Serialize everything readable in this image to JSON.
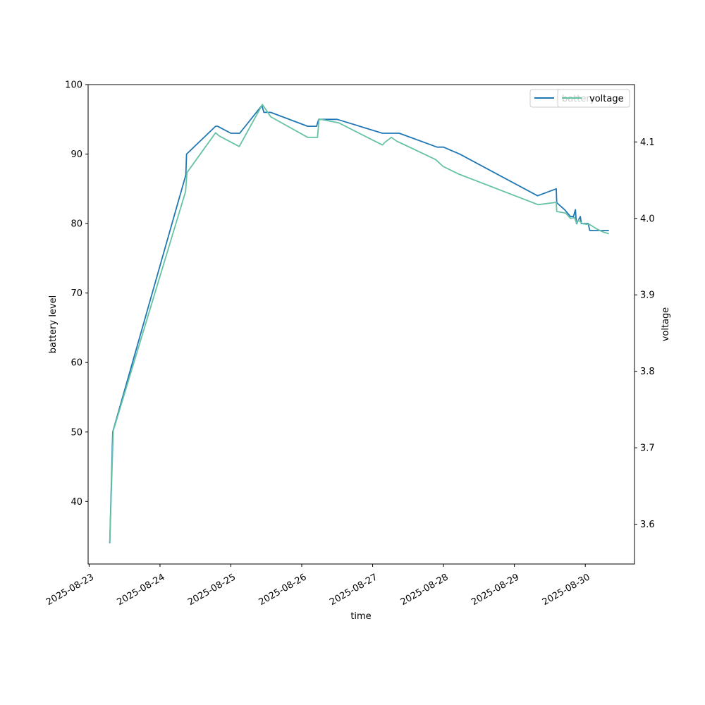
{
  "chart_data": {
    "type": "line",
    "title": "",
    "xlabel": "time",
    "ylabel": "battery level",
    "y2label": "voltage",
    "xlim": [
      "2025-08-22T23:40",
      "2025-08-30T16:40"
    ],
    "ylim": [
      31,
      100
    ],
    "y2lim": [
      3.548,
      4.175
    ],
    "x_ticks": [
      "2025-08-23",
      "2025-08-24",
      "2025-08-25",
      "2025-08-26",
      "2025-08-27",
      "2025-08-28",
      "2025-08-29",
      "2025-08-30"
    ],
    "y_ticks": [
      40,
      50,
      60,
      70,
      80,
      90,
      100
    ],
    "y2_ticks": [
      3.6,
      3.7,
      3.8,
      3.9,
      4.0,
      4.1
    ],
    "legend_left": {
      "placement": "top-right",
      "label": "battery"
    },
    "legend_right": {
      "placement": "top-right",
      "label": "voltage"
    },
    "colors": {
      "battery": "#1f77b4",
      "voltage": "#66c2a5"
    },
    "series": [
      {
        "name": "battery",
        "axis": "left",
        "x": [
          "2025-08-23T07:00",
          "2025-08-23T08:00",
          "2025-08-24T08:45",
          "2025-08-24T09:00",
          "2025-08-24T18:50",
          "2025-08-24T19:30",
          "2025-08-25T00:00",
          "2025-08-25T03:00",
          "2025-08-25T10:30",
          "2025-08-25T11:10",
          "2025-08-25T13:30",
          "2025-08-26T02:00",
          "2025-08-26T05:00",
          "2025-08-26T05:45",
          "2025-08-26T12:00",
          "2025-08-27T03:20",
          "2025-08-27T09:00",
          "2025-08-27T21:50",
          "2025-08-28T00:00",
          "2025-08-28T05:30",
          "2025-08-29T07:50",
          "2025-08-29T14:10",
          "2025-08-29T14:20",
          "2025-08-29T17:00",
          "2025-08-29T19:00",
          "2025-08-29T20:00",
          "2025-08-29T20:40",
          "2025-08-29T21:00",
          "2025-08-29T22:20",
          "2025-08-29T22:40",
          "2025-08-30T01:00",
          "2025-08-30T01:30",
          "2025-08-30T06:00",
          "2025-08-30T08:00"
        ],
        "values": [
          34,
          50,
          87,
          90,
          94,
          94,
          93,
          93,
          97,
          96,
          96,
          94,
          94,
          95,
          95,
          93,
          93,
          91,
          91,
          90,
          84,
          85,
          83,
          82,
          81,
          81,
          82,
          80,
          81,
          80,
          80,
          79,
          79,
          79
        ]
      },
      {
        "name": "voltage",
        "axis": "right",
        "x": [
          "2025-08-23T07:00",
          "2025-08-23T08:10",
          "2025-08-24T08:40",
          "2025-08-24T09:10",
          "2025-08-24T18:50",
          "2025-08-24T20:00",
          "2025-08-25T02:50",
          "2025-08-25T10:40",
          "2025-08-25T13:30",
          "2025-08-26T02:00",
          "2025-08-26T05:20",
          "2025-08-26T05:50",
          "2025-08-26T12:30",
          "2025-08-27T03:20",
          "2025-08-27T04:00",
          "2025-08-27T06:20",
          "2025-08-27T08:10",
          "2025-08-27T09:50",
          "2025-08-27T21:20",
          "2025-08-27T23:50",
          "2025-08-28T05:10",
          "2025-08-29T08:00",
          "2025-08-29T14:10",
          "2025-08-29T14:20",
          "2025-08-29T17:20",
          "2025-08-29T19:00",
          "2025-08-29T20:20",
          "2025-08-29T21:10",
          "2025-08-29T21:40",
          "2025-08-29T23:00",
          "2025-08-30T01:30",
          "2025-08-30T04:00",
          "2025-08-30T06:10",
          "2025-08-30T08:00"
        ],
        "values": [
          3.576,
          3.722,
          4.035,
          4.06,
          4.112,
          4.108,
          4.094,
          4.149,
          4.133,
          4.106,
          4.106,
          4.13,
          4.125,
          4.096,
          4.099,
          4.106,
          4.101,
          4.098,
          4.077,
          4.068,
          4.058,
          4.018,
          4.021,
          4.009,
          4.007,
          4.0,
          4.001,
          3.993,
          3.998,
          3.993,
          3.992,
          3.986,
          3.982,
          3.98
        ]
      }
    ]
  }
}
